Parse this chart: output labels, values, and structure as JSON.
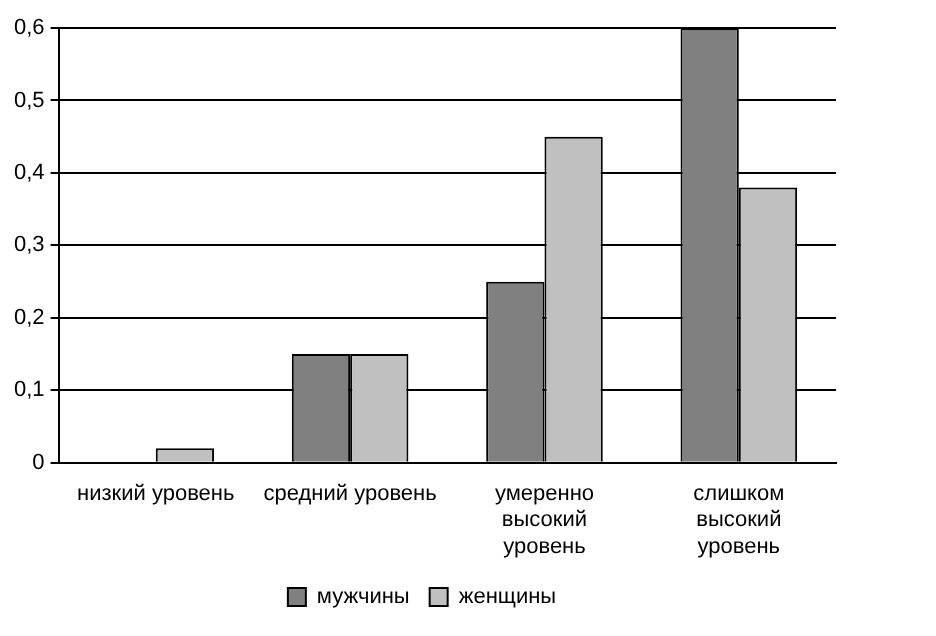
{
  "chart_data": {
    "type": "bar",
    "categories": [
      "низкий уровень",
      "средний уровень",
      "умеренно высокий уровень",
      "слишком высокий уровень"
    ],
    "series": [
      {
        "name": "мужчины",
        "color": "#808080",
        "values": [
          0,
          0.15,
          0.25,
          0.6
        ]
      },
      {
        "name": "женщины",
        "color": "#c0c0c0",
        "values": [
          0.02,
          0.15,
          0.45,
          0.38
        ]
      }
    ],
    "ylim": [
      0,
      0.6
    ],
    "yticks": [
      0,
      {
        "value": 0.1,
        "label": "0,1"
      },
      {
        "value": 0.2,
        "label": "0,2"
      },
      {
        "value": 0.3,
        "label": "0,3"
      },
      {
        "value": 0.4,
        "label": "0,4"
      },
      {
        "value": 0.5,
        "label": "0,5"
      },
      {
        "value": 0.6,
        "label": "0,6"
      }
    ],
    "grid": "y",
    "legend": "bottom"
  }
}
